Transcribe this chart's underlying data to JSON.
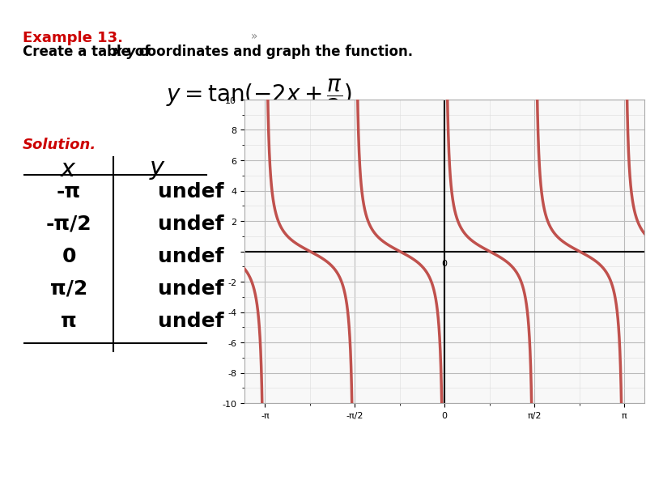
{
  "title_example": "Example 13.",
  "title_subtitle": "Create a table of ",
  "title_subtitle2": "x-y",
  "title_subtitle3": " coordinates and graph the function.",
  "formula": "y = tan(-2x + π/2)",
  "solution_label": "Solution.",
  "table_x_header": "x",
  "table_y_header": "y",
  "table_x_values": [
    "-π",
    "-π/2",
    "0",
    "π/2",
    "π"
  ],
  "table_y_values": [
    "undef",
    "undef",
    "undef",
    "undef",
    "undef"
  ],
  "graph_xlim": [
    -3.5,
    3.5
  ],
  "graph_ylim": [
    -10,
    10
  ],
  "graph_xticks": [
    -3.14159,
    -1.5708,
    0,
    1.5708,
    3.14159
  ],
  "graph_xtick_labels": [
    "-π",
    "-π/2",
    "0",
    "π/2",
    "π"
  ],
  "graph_yticks": [
    -10,
    -8,
    -6,
    -4,
    -2,
    0,
    2,
    4,
    6,
    8,
    10
  ],
  "curve_color": "#c0514d",
  "bg_color": "#f5f5f5",
  "graph_bg": "#ffffff",
  "example_color": "#cc0000",
  "solution_color": "#cc0000",
  "fig_bg": "#f0f0f0"
}
